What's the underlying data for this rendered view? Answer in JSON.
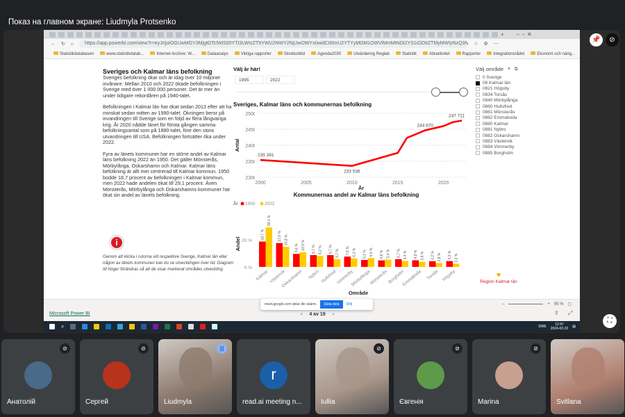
{
  "meet": {
    "share_title": "Показ на главном экране: Liudmyla Protsenko",
    "participants": [
      {
        "name": "Анатолій",
        "muted": true,
        "avatar_color": "#4a6a8a"
      },
      {
        "name": "Сергей",
        "muted": true,
        "avatar_color": "#b8321c"
      },
      {
        "name": "Liudmyla",
        "muted": false,
        "speaking": true,
        "video": true,
        "avatar_color": "#8d7a6e"
      },
      {
        "name": "read.ai meeting n...",
        "muted": false,
        "avatar_letter": "r",
        "avatar_color": "#1a5fa8"
      },
      {
        "name": "Iullia",
        "muted": true,
        "video": true,
        "avatar_color": "#a8968a"
      },
      {
        "name": "Євгенія",
        "muted": true,
        "avatar_color": "#5e9a4a"
      },
      {
        "name": "Marina",
        "muted": true,
        "avatar_color": "#c8a090"
      },
      {
        "name": "Svitlana",
        "muted": false,
        "video": true,
        "avatar_color": "#b08070"
      }
    ]
  },
  "browser": {
    "url": "https://app.powerbi.com/view?r=eyJrIjoiOGUwMGY3MjgtOTc5MS00YTI3LWIzZTItYWU2NWY2NjUwOWYxIiwidCI6ImU2YTYyMDM1OWVlMmMtNDI2YS1iODItZTMyMWIyNzQ3NzWYSIsImMiOjh9",
    "bookmarks": [
      "Statistikdatabasen",
      "www.statistikdatab...",
      "Internet Archive: W...",
      "Dataanalys",
      "Viktiga rapporter",
      "Strukturbild",
      "Agenda2030",
      "Utvärdering Reglab",
      "Statistik",
      "Attraktivitet",
      "Rapporter",
      "Integrationsrådet",
      "Ekonomi och närig...",
      "Aktuelt",
      "Andra favoriter"
    ]
  },
  "report": {
    "title": "Sveriges och Kalmar läns befolkning",
    "paragraphs": [
      "Sveriges befolkning ökar och är idag över 10 miljoner invånare. Mellan 2010 och 2022 ökade befolkningen i Sverige med över 1 000 000 personer. Det är mer än under tidigare rekordåren på 1940-talet.",
      "Befolkningen i Kalmar län har ökat sedan 2013 efter att ha minskat sedan mitten av 1990-talet. Ökningen beror på invandringen till Sverige som en följd av flera långvariga krig. År 2020 nådde länet för första gången samma befolkningsantal som på 1880-talet, före den stora utvandringen till USA. Befolkningen fortsätter öka under 2022.",
      "Fyra av länets kommuner har en större andel av Kalmar läns befolkning 2022 än 1950. Det gäller Mönsterås, Mörbylånga, Oskarshamn och Kalmar. Kalmar läns befolkning är allt mer centrerad till Kalmar kommun. 1950 bodde 18,7 procent av befolkningen i Kalmar kommun, men 2022 hade andelen ökat till 29,1 procent. Även Mönsterås, Mörbylånga och Oskarshamns kommuner har ökat sin andel av länets befolkning."
    ],
    "note": "Genom att klicka i rutorna vid respektive Sverige, Kalmar län eller någon av länets kommuner kan du se utvecklingen över tid. Diagram till höger förändras så att de visar markerat områdes utveckling.",
    "year_picker": {
      "label": "Välj år här!",
      "from": "1995",
      "to": "2022"
    },
    "area_slicer": {
      "label": "Välj område",
      "items": [
        {
          "label": "0 Sverige",
          "checked": false
        },
        {
          "label": "08 Kalmar län",
          "checked": true
        },
        {
          "label": "0821 Högsby",
          "checked": false
        },
        {
          "label": "0834 Torsås",
          "checked": false
        },
        {
          "label": "0840 Mörbylånga",
          "checked": false
        },
        {
          "label": "0860 Hultsfred",
          "checked": false
        },
        {
          "label": "0861 Mönsterås",
          "checked": false
        },
        {
          "label": "0862 Emmaboda",
          "checked": false
        },
        {
          "label": "0880 Kalmar",
          "checked": false
        },
        {
          "label": "0881 Nybro",
          "checked": false
        },
        {
          "label": "0882 Oskarshamn",
          "checked": false
        },
        {
          "label": "0883 Västervik",
          "checked": false
        },
        {
          "label": "0884 Vimmerby",
          "checked": false
        },
        {
          "label": "0885 Borgholm",
          "checked": false
        }
      ]
    },
    "logo": "Region Kalmar län"
  },
  "chart_data": [
    {
      "type": "line",
      "title": "Sveriges, Kalmar läns och kommunernas befolkning",
      "xlabel": "År",
      "ylabel": "Antal",
      "x": [
        2000,
        2010,
        2015,
        2016,
        2018,
        2020,
        2021,
        2022
      ],
      "y": [
        235391,
        233536,
        237600,
        242300,
        244670,
        246000,
        247200,
        247711
      ],
      "data_labels": {
        "2000": "235 391",
        "2010": "233 536",
        "2018": "244 670",
        "2022": "247 711"
      },
      "xticks": [
        "2000",
        "2005",
        "2010",
        "2015",
        "2020"
      ],
      "yticks": [
        "230t",
        "235t",
        "240t",
        "245t",
        "250t"
      ],
      "ylim": [
        230000,
        250000
      ],
      "xlim": [
        2000,
        2022
      ],
      "grid": true,
      "color": "#ff0000"
    },
    {
      "type": "bar",
      "title": "Kommunernas andel av Kalmar läns befolkning",
      "xlabel": "Område",
      "ylabel": "Andel",
      "legend_title": "År",
      "legend": "top-left",
      "categories": [
        "Kalmar",
        "Västervik",
        "Oskarshamn",
        "Nybro",
        "Hultsfred",
        "Vimmerby",
        "Mörbylånga",
        "Mönsterås",
        "Borgholm",
        "Emmaboda",
        "Torsås",
        "Högsby"
      ],
      "series": [
        {
          "name": "1950",
          "color": "#ff0000",
          "values": [
            18.7,
            17.6,
            9.6,
            8.7,
            8.7,
            7.6,
            5.1,
            4.8,
            5.7,
            4.9,
            4.2,
            4.3
          ]
        },
        {
          "name": "2022",
          "color": "#ffcc00",
          "values": [
            29.1,
            14.8,
            10.9,
            8.2,
            5.7,
            6.3,
            6.5,
            5.4,
            4.4,
            3.8,
            2.8,
            2.3
          ]
        }
      ],
      "yticks": [
        "0 %",
        "20 %"
      ],
      "ylim": [
        0,
        30
      ]
    }
  ],
  "powerbi": {
    "brand": "Microsoft Power BI",
    "page": "4 av 19",
    "zoom": "95 %"
  },
  "share_bar": {
    "text": "meet.google.com delar din skärm.",
    "stop": "Sluta dela",
    "hide": "Dölj"
  },
  "taskbar": {
    "time": "12:47",
    "date": "2024-02-22",
    "lang": "SWE"
  }
}
